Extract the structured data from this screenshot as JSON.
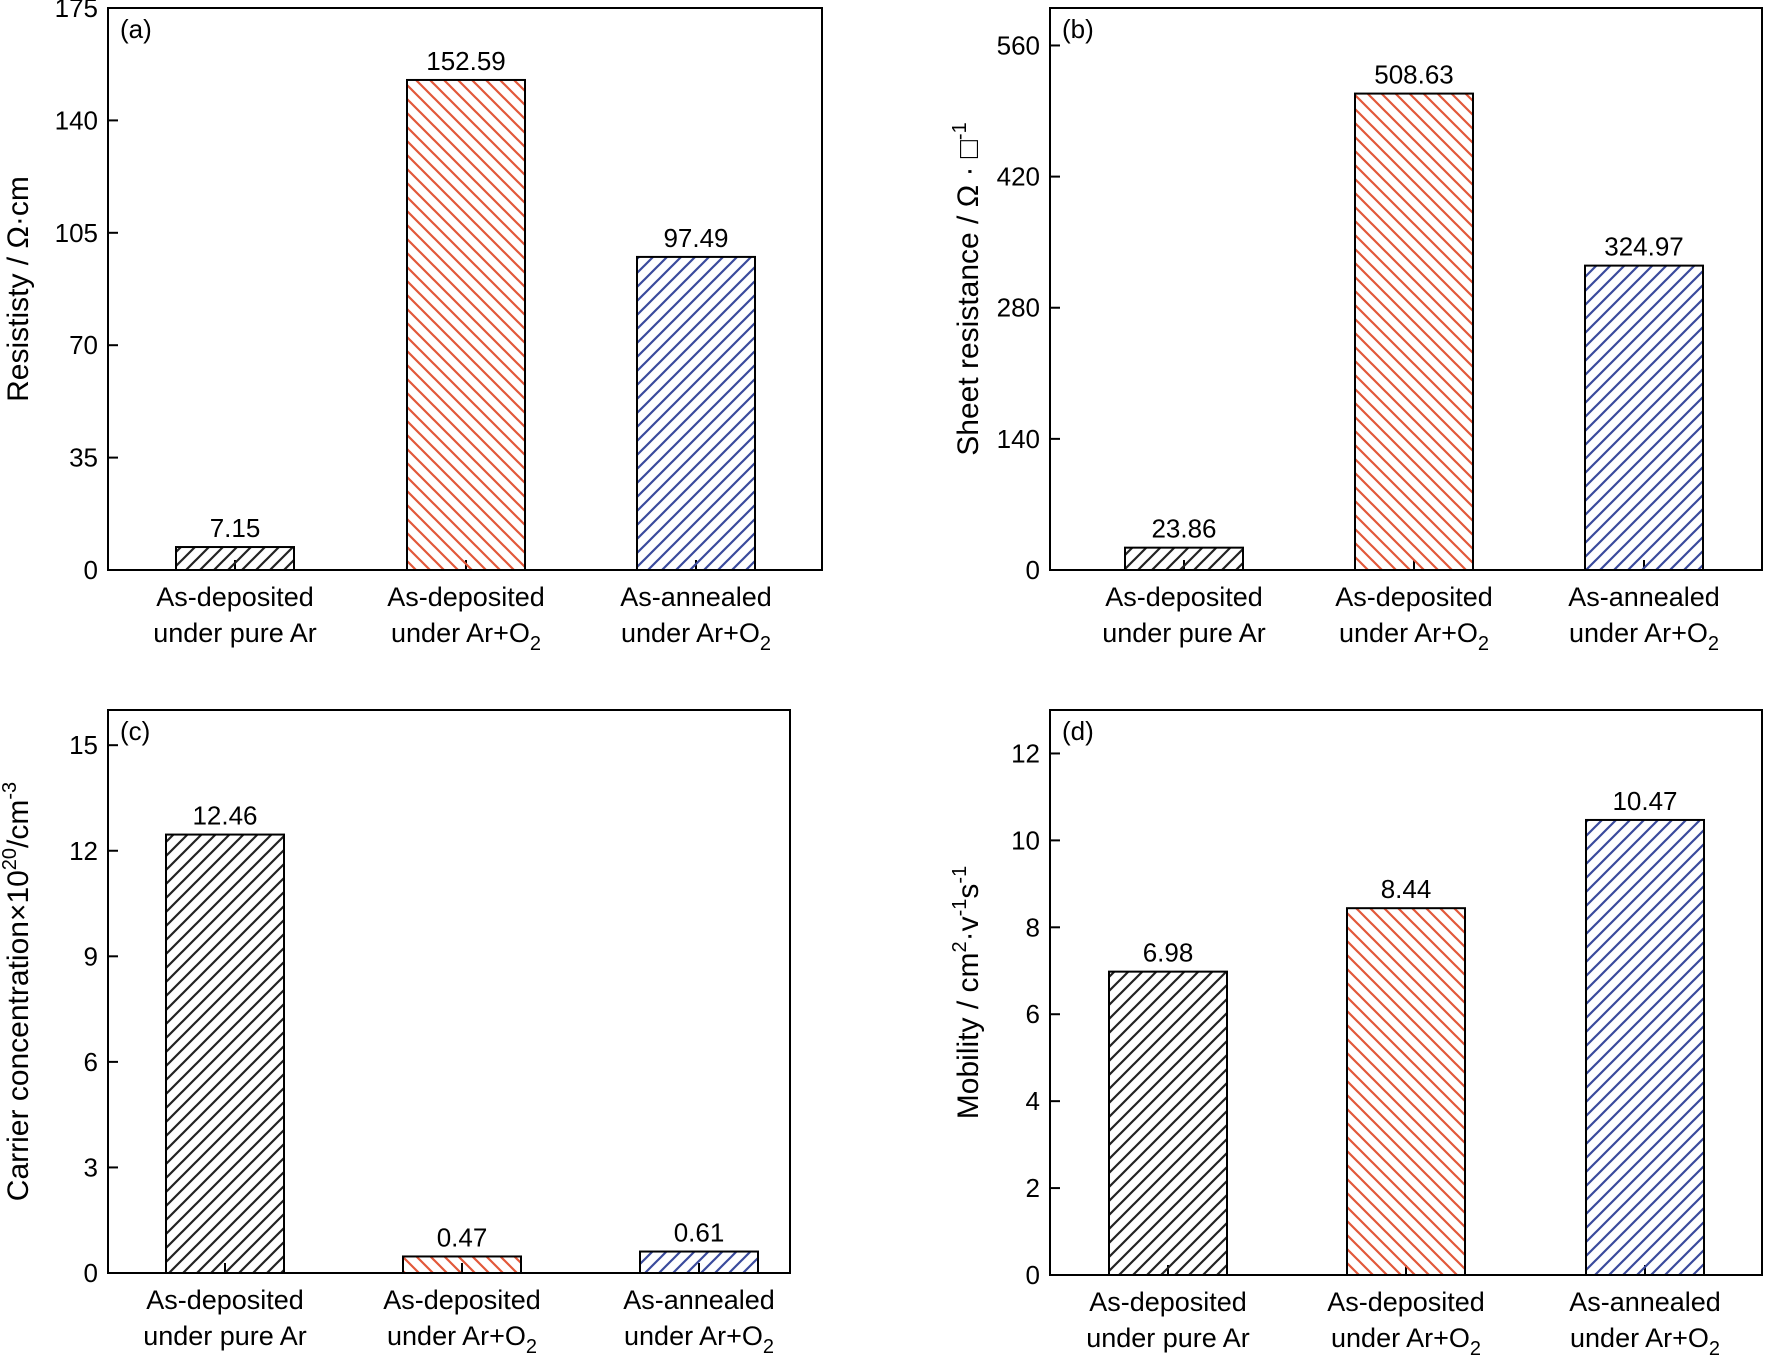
{
  "colors": {
    "pure_ar": "#222222",
    "ar_o2_deposited": "#e2583a",
    "ar_o2_annealed": "#3a4a9c"
  },
  "chart_data": [
    {
      "type": "bar",
      "panel": "(a)",
      "categories": [
        [
          "As-deposited",
          "under pure Ar",
          ""
        ],
        [
          "As-deposited",
          "under Ar+O",
          "2"
        ],
        [
          "As-annealed",
          "under Ar+O",
          "2"
        ]
      ],
      "values": [
        7.15,
        152.59,
        97.49
      ],
      "value_labels": [
        "7.15",
        "152.59",
        "97.49"
      ],
      "ylabel": {
        "text": "Resististy / Ω·cm",
        "sup": "",
        "tail": ""
      },
      "ylim": [
        0,
        175
      ],
      "yticks": [
        0,
        35,
        70,
        105,
        140,
        175
      ],
      "hatch": "//",
      "grid": false
    },
    {
      "type": "bar",
      "panel": "(b)",
      "categories": [
        [
          "As-deposited",
          "under pure Ar",
          ""
        ],
        [
          "As-deposited",
          "under Ar+O",
          "2"
        ],
        [
          "As-annealed",
          "under Ar+O",
          "2"
        ]
      ],
      "values": [
        23.86,
        508.63,
        324.97
      ],
      "value_labels": [
        "23.86",
        "508.63",
        "324.97"
      ],
      "ylabel": {
        "text": "Sheet resistance / Ω · □",
        "sup": "-1",
        "tail": ""
      },
      "ylim": [
        0,
        600
      ],
      "yticks": [
        0,
        140,
        280,
        420,
        560
      ],
      "hatch": "//",
      "grid": false
    },
    {
      "type": "bar",
      "panel": "(c)",
      "categories": [
        [
          "As-deposited",
          "under pure Ar",
          ""
        ],
        [
          "As-deposited",
          "under Ar+O",
          "2"
        ],
        [
          "As-annealed",
          "under Ar+O",
          "2"
        ]
      ],
      "values": [
        12.46,
        0.47,
        0.61
      ],
      "value_labels": [
        "12.46",
        "0.47",
        "0.61"
      ],
      "ylabel": {
        "text": "Carrier concentration×10",
        "sup": "20",
        "tail": "/cm",
        "sup2": "-3"
      },
      "ylim": [
        0,
        16
      ],
      "yticks": [
        0,
        3,
        6,
        9,
        12,
        15
      ],
      "hatch": "//",
      "grid": false
    },
    {
      "type": "bar",
      "panel": "(d)",
      "categories": [
        [
          "As-deposited",
          "under pure Ar",
          ""
        ],
        [
          "As-deposited",
          "under Ar+O",
          "2"
        ],
        [
          "As-annealed",
          "under Ar+O",
          "2"
        ]
      ],
      "values": [
        6.98,
        8.44,
        10.47
      ],
      "value_labels": [
        "6.98",
        "8.44",
        "10.47"
      ],
      "ylabel": {
        "parts": [
          "Mobility / cm",
          "2",
          "·v",
          "-1",
          "s",
          "-1"
        ]
      },
      "ylim": [
        0,
        13
      ],
      "yticks": [
        0,
        2,
        4,
        6,
        8,
        10,
        12
      ],
      "hatch": "//",
      "grid": false
    }
  ]
}
